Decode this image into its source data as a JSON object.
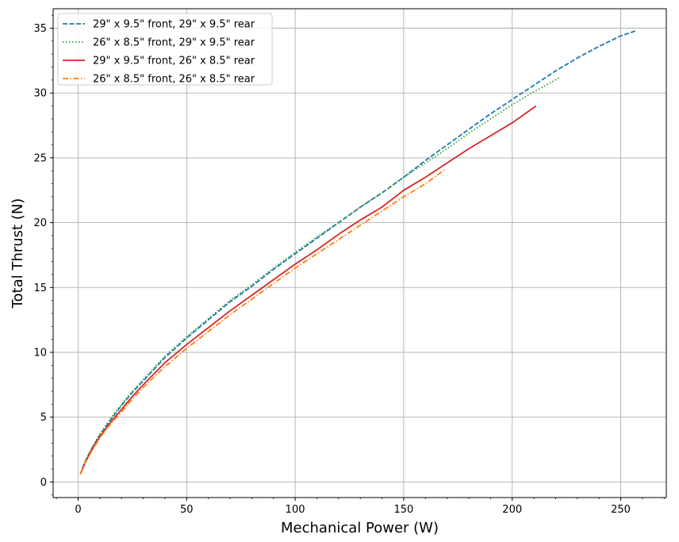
{
  "chart_data": {
    "type": "line",
    "title": "",
    "xlabel": "Mechanical Power (W)",
    "ylabel": "Total Thrust (N)",
    "xlim": [
      -11.5,
      271
    ],
    "ylim": [
      -1.2,
      36.5
    ],
    "xticks": [
      0,
      50,
      100,
      150,
      200,
      250
    ],
    "yticks": [
      0,
      5,
      10,
      15,
      20,
      25,
      30,
      35
    ],
    "grid": true,
    "legend_position": "upper-left",
    "series": [
      {
        "name": "29\" x 9.5\" front, 29\" x 9.5\" rear",
        "color": "#1f77b4",
        "dash": "dashed",
        "points": [
          [
            1,
            0.6
          ],
          [
            3,
            1.5
          ],
          [
            6,
            2.5
          ],
          [
            10,
            3.6
          ],
          [
            15,
            4.8
          ],
          [
            20,
            5.9
          ],
          [
            25,
            6.9
          ],
          [
            30,
            7.8
          ],
          [
            40,
            9.6
          ],
          [
            50,
            11.1
          ],
          [
            60,
            12.5
          ],
          [
            70,
            13.9
          ],
          [
            80,
            15.1
          ],
          [
            90,
            16.4
          ],
          [
            100,
            17.6
          ],
          [
            110,
            18.8
          ],
          [
            120,
            20.0
          ],
          [
            130,
            21.2
          ],
          [
            140,
            22.3
          ],
          [
            150,
            23.5
          ],
          [
            160,
            24.8
          ],
          [
            170,
            26.0
          ],
          [
            180,
            27.2
          ],
          [
            190,
            28.4
          ],
          [
            200,
            29.5
          ],
          [
            210,
            30.6
          ],
          [
            220,
            31.7
          ],
          [
            230,
            32.7
          ],
          [
            240,
            33.6
          ],
          [
            250,
            34.4
          ],
          [
            257,
            34.8
          ]
        ]
      },
      {
        "name": "26\" x 8.5\" front, 29\" x 9.5\" rear",
        "color": "#2ca02c",
        "dash": "dotted",
        "points": [
          [
            1,
            0.6
          ],
          [
            3,
            1.5
          ],
          [
            6,
            2.5
          ],
          [
            10,
            3.7
          ],
          [
            15,
            4.9
          ],
          [
            20,
            6.0
          ],
          [
            25,
            7.0
          ],
          [
            30,
            7.9
          ],
          [
            40,
            9.7
          ],
          [
            50,
            11.2
          ],
          [
            60,
            12.6
          ],
          [
            70,
            14.0
          ],
          [
            80,
            15.2
          ],
          [
            90,
            16.5
          ],
          [
            100,
            17.7
          ],
          [
            110,
            18.9
          ],
          [
            120,
            20.0
          ],
          [
            130,
            21.2
          ],
          [
            140,
            22.3
          ],
          [
            150,
            23.5
          ],
          [
            160,
            24.6
          ],
          [
            170,
            25.7
          ],
          [
            180,
            26.9
          ],
          [
            190,
            28.0
          ],
          [
            200,
            29.1
          ],
          [
            210,
            30.1
          ],
          [
            222,
            31.2
          ]
        ]
      },
      {
        "name": "29\" x 9.5\" front, 26\" x 8.5\" rear",
        "color": "#d62728",
        "dash": "solid",
        "points": [
          [
            1,
            0.6
          ],
          [
            3,
            1.4
          ],
          [
            6,
            2.4
          ],
          [
            10,
            3.5
          ],
          [
            15,
            4.6
          ],
          [
            20,
            5.6
          ],
          [
            25,
            6.6
          ],
          [
            30,
            7.5
          ],
          [
            40,
            9.2
          ],
          [
            50,
            10.6
          ],
          [
            60,
            11.9
          ],
          [
            70,
            13.2
          ],
          [
            80,
            14.4
          ],
          [
            90,
            15.6
          ],
          [
            100,
            16.8
          ],
          [
            110,
            17.9
          ],
          [
            120,
            19.1
          ],
          [
            130,
            20.2
          ],
          [
            140,
            21.2
          ],
          [
            150,
            22.5
          ],
          [
            160,
            23.5
          ],
          [
            170,
            24.6
          ],
          [
            180,
            25.7
          ],
          [
            190,
            26.7
          ],
          [
            200,
            27.7
          ],
          [
            211,
            29.0
          ]
        ]
      },
      {
        "name": "26\" x 8.5\" front, 26\" x 8.5\" rear",
        "color": "#ff7f0e",
        "dash": "dashdot",
        "points": [
          [
            1,
            0.6
          ],
          [
            3,
            1.4
          ],
          [
            6,
            2.3
          ],
          [
            10,
            3.4
          ],
          [
            15,
            4.5
          ],
          [
            20,
            5.4
          ],
          [
            25,
            6.4
          ],
          [
            30,
            7.3
          ],
          [
            40,
            8.9
          ],
          [
            50,
            10.3
          ],
          [
            60,
            11.6
          ],
          [
            70,
            12.9
          ],
          [
            80,
            14.1
          ],
          [
            90,
            15.3
          ],
          [
            100,
            16.5
          ],
          [
            110,
            17.6
          ],
          [
            120,
            18.7
          ],
          [
            130,
            19.8
          ],
          [
            140,
            20.9
          ],
          [
            150,
            22.0
          ],
          [
            160,
            23.0
          ],
          [
            169,
            24.1
          ]
        ]
      }
    ]
  }
}
